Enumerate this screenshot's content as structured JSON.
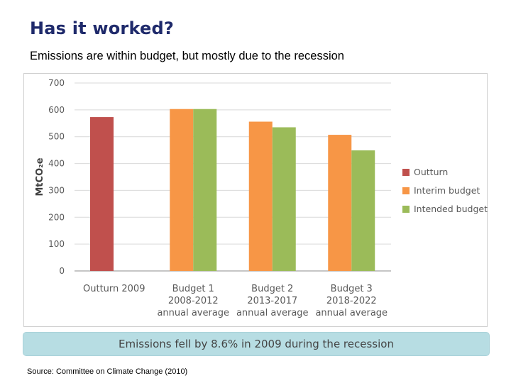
{
  "page": {
    "title": "Has it worked?",
    "subtitle": "Emissions are within budget, but mostly due to the recession",
    "banner": "Emissions fell by 8.6% in 2009 during the recession",
    "source": "Source: Committee on Climate Change (2010)"
  },
  "chart_data": {
    "type": "bar",
    "title": "",
    "xlabel": "",
    "ylabel": "MtCO₂e",
    "ylim": [
      0,
      700
    ],
    "yticks": [
      0,
      100,
      200,
      300,
      400,
      500,
      600,
      700
    ],
    "grid": true,
    "legend_position": "right",
    "categories": [
      [
        "Outturn 2009"
      ],
      [
        "Budget 1",
        "2008-2012",
        "annual average"
      ],
      [
        "Budget 2",
        "2013-2017",
        "annual average"
      ],
      [
        "Budget 3",
        "2018-2022",
        "annual average"
      ]
    ],
    "series": [
      {
        "name": "Outturn",
        "color": "#c0504d",
        "values": [
          573,
          null,
          null,
          null
        ]
      },
      {
        "name": "Interim budget",
        "color": "#f79646",
        "values": [
          null,
          603,
          556,
          507
        ]
      },
      {
        "name": "Intended budget",
        "color": "#9bbb59",
        "values": [
          null,
          603,
          535,
          449
        ]
      }
    ]
  }
}
